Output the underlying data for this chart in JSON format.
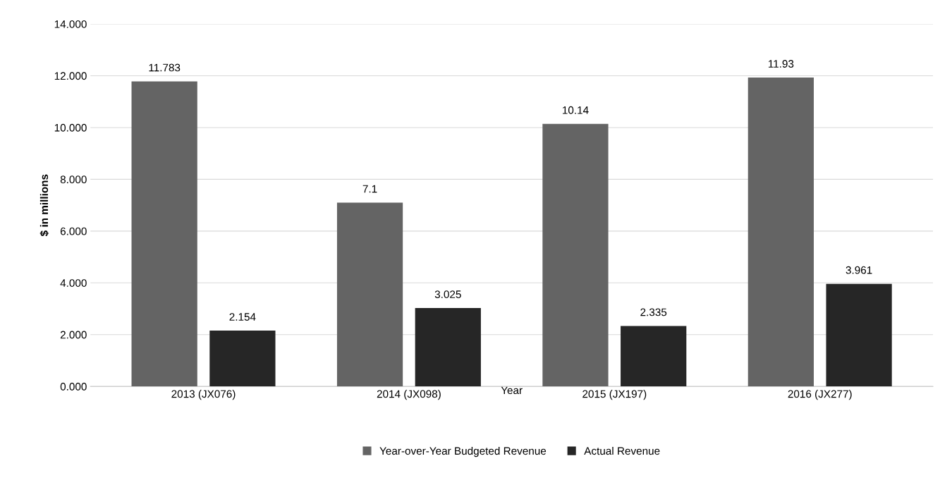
{
  "chart_data": {
    "type": "bar",
    "xlabel": "Year",
    "ylabel": "$ in millions",
    "categories": [
      "2013 (JX076)",
      "2014 (JX098)",
      "2015 (JX197)",
      "2016 (JX277)"
    ],
    "series": [
      {
        "name": "Year-over-Year Budgeted Revenue",
        "color": "#646464",
        "values": [
          11.783,
          7.1,
          10.14,
          11.93
        ]
      },
      {
        "name": "Actual Revenue",
        "color": "#262626",
        "values": [
          2.154,
          3.025,
          2.335,
          3.961
        ]
      }
    ],
    "ylim": [
      0,
      14
    ],
    "yticks": [
      {
        "value": 0,
        "label": "0.000"
      },
      {
        "value": 2,
        "label": "2.000"
      },
      {
        "value": 4,
        "label": "4.000"
      },
      {
        "value": 6,
        "label": "6.000"
      },
      {
        "value": 8,
        "label": "8.000"
      },
      {
        "value": 10,
        "label": "10.000"
      },
      {
        "value": 12,
        "label": "12.000"
      },
      {
        "value": 14,
        "label": "14.000"
      }
    ],
    "grid": "y",
    "legend": "bottom",
    "data_labels": true
  }
}
